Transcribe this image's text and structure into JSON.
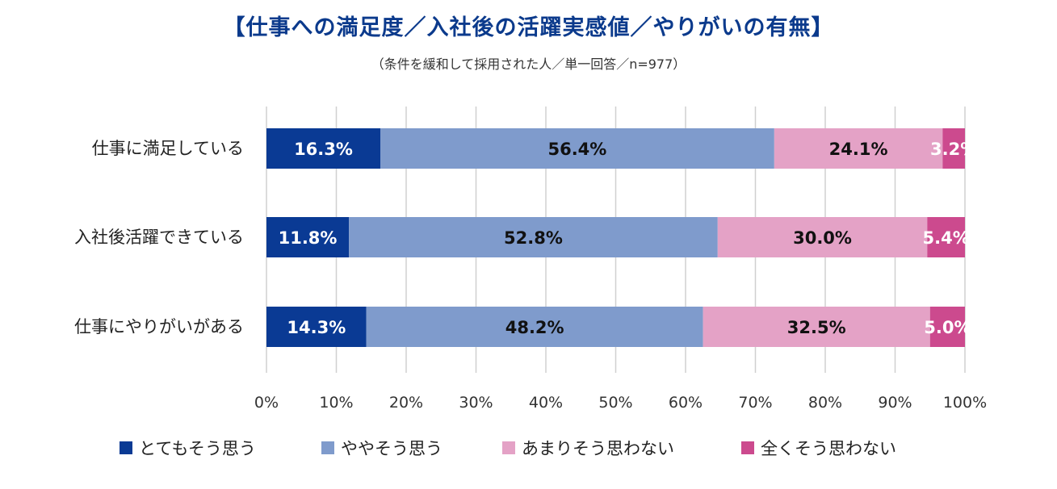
{
  "header": {
    "title": "【仕事への満足度／入社後の活躍実感値／やりがいの有無】",
    "subtitle": "（条件を緩和して採用された人／単一回答／n=977）"
  },
  "chart_data": {
    "type": "bar",
    "orientation": "horizontal",
    "stacked": true,
    "title": "【仕事への満足度／入社後の活躍実感値／やりがいの有無】",
    "subtitle": "（条件を緩和して採用された人／単一回答／n=977）",
    "categories": [
      "仕事に満足している",
      "入社後活躍できている",
      "仕事にやりがいがある"
    ],
    "series": [
      {
        "name": "とてもそう思う",
        "color": "#0a3a94",
        "label_color": "#ffffff",
        "values": [
          16.3,
          11.8,
          14.3
        ]
      },
      {
        "name": "ややそう思う",
        "color": "#7f9bcc",
        "label_color": "#111111",
        "values": [
          56.4,
          52.8,
          48.2
        ]
      },
      {
        "name": "あまりそう思わない",
        "color": "#e4a2c6",
        "label_color": "#111111",
        "values": [
          24.1,
          30.0,
          32.5
        ]
      },
      {
        "name": "全くそう思わない",
        "color": "#cc4a8e",
        "label_color": "#ffffff",
        "values": [
          3.2,
          5.4,
          5.0
        ]
      }
    ],
    "x_ticks": [
      "0%",
      "10%",
      "20%",
      "30%",
      "40%",
      "50%",
      "60%",
      "70%",
      "80%",
      "90%",
      "100%"
    ],
    "xlim": [
      0,
      100
    ],
    "grid": true,
    "legend": "bottom",
    "value_format": "percent_1dp"
  }
}
